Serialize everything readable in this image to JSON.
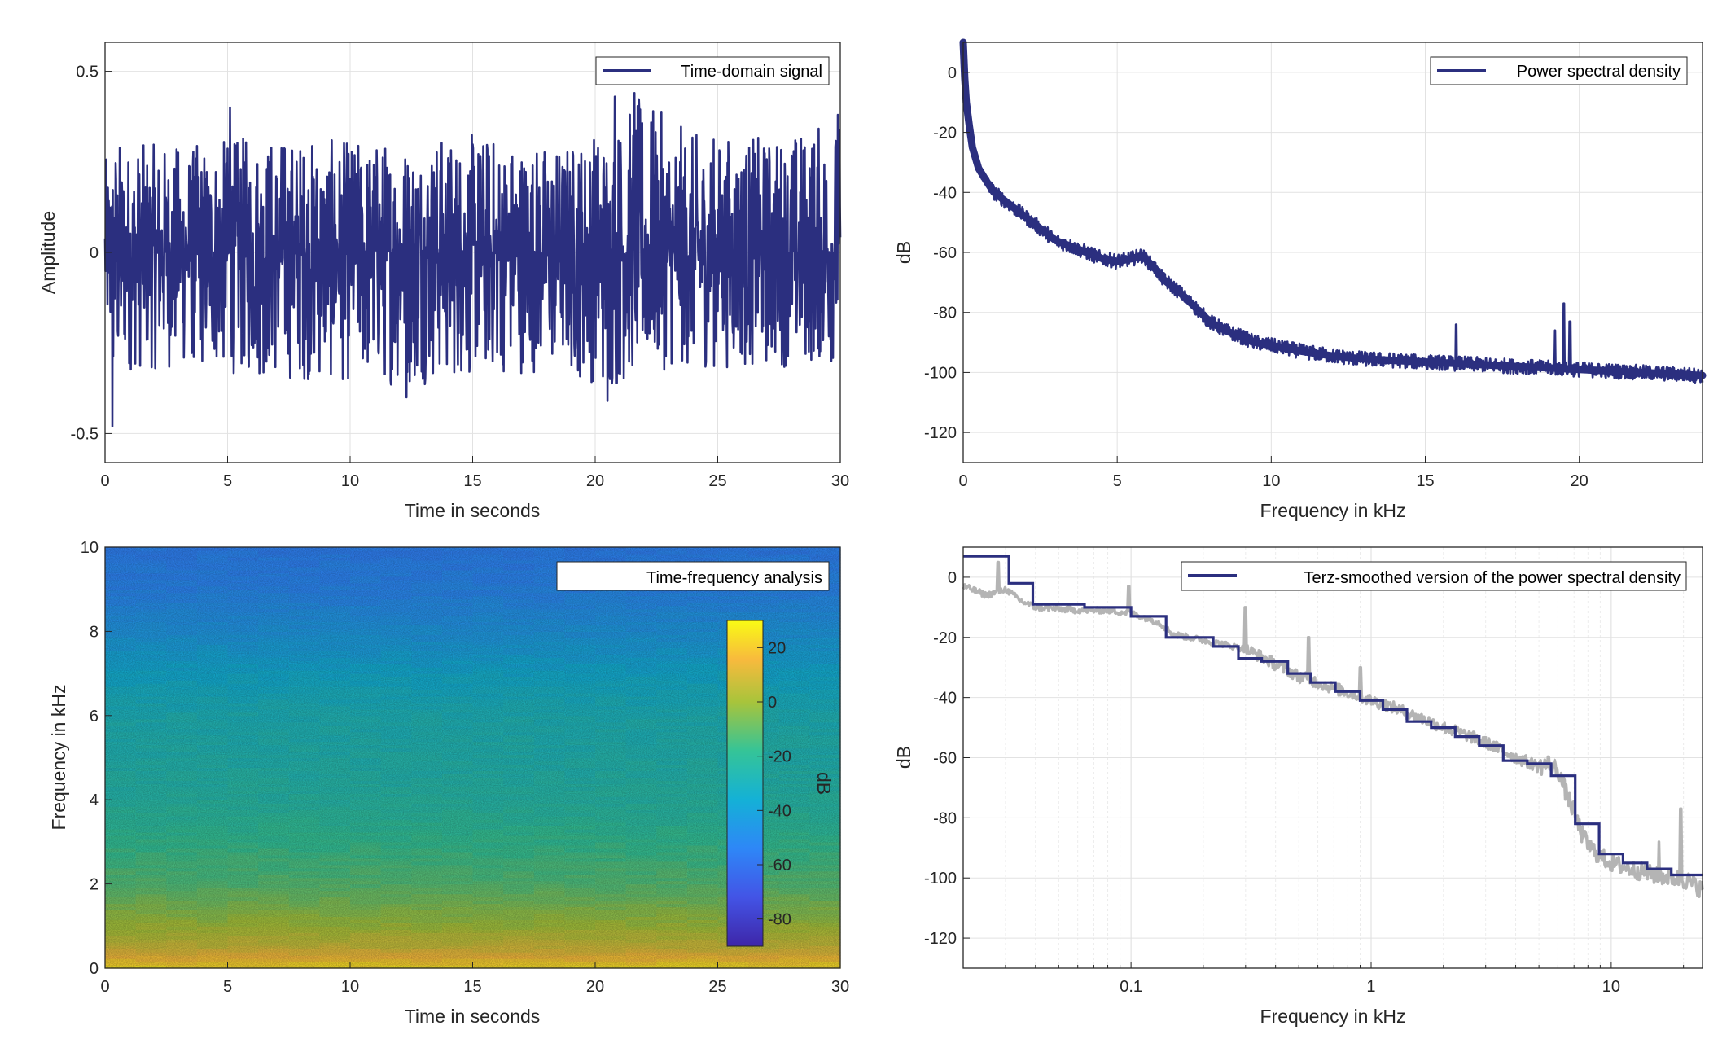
{
  "colors": {
    "series": "#2b2f7f",
    "raw": "#b4b4b4",
    "grid": "#e2e2e2",
    "axis": "#262626"
  },
  "chart_data": [
    {
      "type": "line",
      "legend": "Time-domain signal",
      "legend_position": "top-right",
      "xlabel": "Time in seconds",
      "ylabel": "Amplitude",
      "xlim": [
        0,
        30
      ],
      "ylim": [
        -0.58,
        0.58
      ],
      "xticks": [
        0,
        5,
        10,
        15,
        20,
        25,
        30
      ],
      "yticks": [
        -0.5,
        0,
        0.5
      ],
      "grid": true,
      "envelope": {
        "t": [
          0,
          0.4,
          0.8,
          3.5,
          6.5,
          9.5,
          12.5,
          15.5,
          18.5,
          20.2,
          20.5,
          21.8,
          24,
          27,
          29.8,
          30
        ],
        "upper": [
          0.25,
          0.33,
          0.3,
          0.3,
          0.33,
          0.31,
          0.32,
          0.33,
          0.3,
          0.35,
          0.34,
          0.43,
          0.33,
          0.32,
          0.37,
          0.36
        ],
        "lower": [
          -0.22,
          -0.47,
          -0.33,
          -0.32,
          -0.35,
          -0.36,
          -0.37,
          -0.34,
          -0.33,
          -0.37,
          -0.4,
          -0.33,
          -0.32,
          -0.32,
          -0.31,
          -0.3
        ]
      },
      "peaks": [
        {
          "t": 0.3,
          "v": -0.48
        },
        {
          "t": 12.3,
          "v": -0.4
        },
        {
          "t": 20.5,
          "v": -0.41
        },
        {
          "t": 21.6,
          "v": 0.44
        },
        {
          "t": 20.8,
          "v": 0.43
        },
        {
          "t": 5.1,
          "v": 0.4
        },
        {
          "t": 29.9,
          "v": 0.38
        }
      ]
    },
    {
      "type": "line",
      "legend": "Power spectral density",
      "legend_position": "top-right",
      "xlabel": "Frequency in kHz",
      "ylabel": "dB",
      "xlim": [
        0,
        24
      ],
      "ylim": [
        -130,
        10
      ],
      "xticks": [
        0,
        5,
        10,
        15,
        20
      ],
      "yticks": [
        -120,
        -100,
        -80,
        -60,
        -40,
        -20,
        0
      ],
      "grid": true,
      "x": [
        0,
        0.05,
        0.1,
        0.2,
        0.3,
        0.5,
        0.8,
        1,
        1.5,
        2,
        2.5,
        3,
        3.5,
        4,
        4.5,
        5,
        5.5,
        5.8,
        6.2,
        6.5,
        7,
        7.5,
        8,
        8.5,
        9,
        9.5,
        10,
        11,
        12,
        13,
        14,
        15,
        16,
        17,
        18,
        19,
        20,
        21,
        22,
        23,
        24
      ],
      "y": [
        10,
        -2,
        -10,
        -18,
        -25,
        -32,
        -37,
        -40,
        -44,
        -48,
        -52,
        -56,
        -58,
        -60,
        -62,
        -63,
        -62,
        -61,
        -65,
        -69,
        -73,
        -78,
        -83,
        -86,
        -88,
        -90,
        -91,
        -93,
        -94.5,
        -95.5,
        -96,
        -96.5,
        -97,
        -97.5,
        -98,
        -98.5,
        -99,
        -99.5,
        -100,
        -100.5,
        -101
      ],
      "spikes": [
        {
          "x": 16,
          "y": -84
        },
        {
          "x": 19.2,
          "y": -86
        },
        {
          "x": 19.5,
          "y": -77
        },
        {
          "x": 19.7,
          "y": -83
        }
      ]
    },
    {
      "type": "heatmap",
      "legend": "Time-frequency analysis",
      "legend_position": "top-right",
      "xlabel": "Time in seconds",
      "ylabel": "Frequency in kHz",
      "xlim": [
        0,
        30
      ],
      "ylim": [
        0,
        10
      ],
      "xticks": [
        0,
        5,
        10,
        15,
        20,
        25,
        30
      ],
      "yticks": [
        0,
        2,
        4,
        6,
        8,
        10
      ],
      "colorbar": {
        "label": "dB",
        "limits": [
          -90,
          30
        ],
        "ticks": [
          -80,
          -60,
          -40,
          -20,
          0,
          20
        ]
      },
      "profile_freq_khz": [
        0,
        0.2,
        0.5,
        1,
        2,
        3,
        4,
        5,
        6,
        7,
        8,
        9,
        10
      ],
      "profile_db": [
        25,
        18,
        8,
        0,
        -12,
        -18,
        -24,
        -27,
        -29,
        -36,
        -45,
        -52,
        -55
      ]
    },
    {
      "type": "line",
      "legend": "Terz-smoothed version of the power spectral density",
      "legend_position": "top-right",
      "xlabel": "Frequency in kHz",
      "ylabel": "dB",
      "xscale": "log",
      "xlim": [
        0.02,
        24
      ],
      "ylim": [
        -130,
        10
      ],
      "xticks": [
        0.1,
        1,
        10
      ],
      "yticks": [
        -120,
        -100,
        -80,
        -60,
        -40,
        -20,
        0
      ],
      "grid": true,
      "terz_steps": [
        {
          "x0": 0.02,
          "x1": 0.031,
          "y": 7
        },
        {
          "x0": 0.031,
          "x1": 0.039,
          "y": -2
        },
        {
          "x0": 0.039,
          "x1": 0.064,
          "y": -9
        },
        {
          "x0": 0.064,
          "x1": 0.1,
          "y": -10
        },
        {
          "x0": 0.1,
          "x1": 0.14,
          "y": -13
        },
        {
          "x0": 0.14,
          "x1": 0.22,
          "y": -20
        },
        {
          "x0": 0.22,
          "x1": 0.28,
          "y": -23
        },
        {
          "x0": 0.28,
          "x1": 0.35,
          "y": -27
        },
        {
          "x0": 0.35,
          "x1": 0.45,
          "y": -28
        },
        {
          "x0": 0.45,
          "x1": 0.56,
          "y": -32
        },
        {
          "x0": 0.56,
          "x1": 0.71,
          "y": -35
        },
        {
          "x0": 0.71,
          "x1": 0.9,
          "y": -38
        },
        {
          "x0": 0.9,
          "x1": 1.12,
          "y": -41
        },
        {
          "x0": 1.12,
          "x1": 1.41,
          "y": -44
        },
        {
          "x0": 1.41,
          "x1": 1.78,
          "y": -48
        },
        {
          "x0": 1.78,
          "x1": 2.24,
          "y": -50
        },
        {
          "x0": 2.24,
          "x1": 2.82,
          "y": -53
        },
        {
          "x0": 2.82,
          "x1": 3.55,
          "y": -56
        },
        {
          "x0": 3.55,
          "x1": 4.47,
          "y": -61
        },
        {
          "x0": 4.47,
          "x1": 5.62,
          "y": -62
        },
        {
          "x0": 5.62,
          "x1": 7.08,
          "y": -66
        },
        {
          "x0": 7.08,
          "x1": 8.91,
          "y": -82
        },
        {
          "x0": 8.91,
          "x1": 11.2,
          "y": -92
        },
        {
          "x0": 11.2,
          "x1": 14.1,
          "y": -95
        },
        {
          "x0": 14.1,
          "x1": 17.8,
          "y": -97
        },
        {
          "x0": 17.8,
          "x1": 24,
          "y": -99
        }
      ],
      "raw_x": [
        0.02,
        0.025,
        0.03,
        0.035,
        0.04,
        0.06,
        0.08,
        0.1,
        0.13,
        0.15,
        0.2,
        0.3,
        0.4,
        0.5,
        0.7,
        1,
        1.5,
        2,
        3,
        4,
        5,
        5.5,
        6,
        6.5,
        7,
        7.5,
        8,
        8.5,
        9,
        10,
        12,
        15,
        18,
        21,
        24
      ],
      "raw_y": [
        -3,
        -6,
        -4,
        -8,
        -10,
        -11,
        -11,
        -12,
        -15,
        -19,
        -21,
        -24,
        -29,
        -33,
        -37,
        -41,
        -46,
        -50,
        -55,
        -60,
        -63,
        -62,
        -64,
        -72,
        -78,
        -85,
        -89,
        -91,
        -93,
        -95,
        -97,
        -99,
        -100,
        -101,
        -104
      ],
      "raw_spikes": [
        {
          "x": 0.028,
          "y": 5
        },
        {
          "x": 0.098,
          "y": -3
        },
        {
          "x": 0.3,
          "y": -10
        },
        {
          "x": 0.55,
          "y": -20
        },
        {
          "x": 0.9,
          "y": -30
        },
        {
          "x": 15.8,
          "y": -88
        },
        {
          "x": 19.5,
          "y": -77
        }
      ]
    }
  ]
}
